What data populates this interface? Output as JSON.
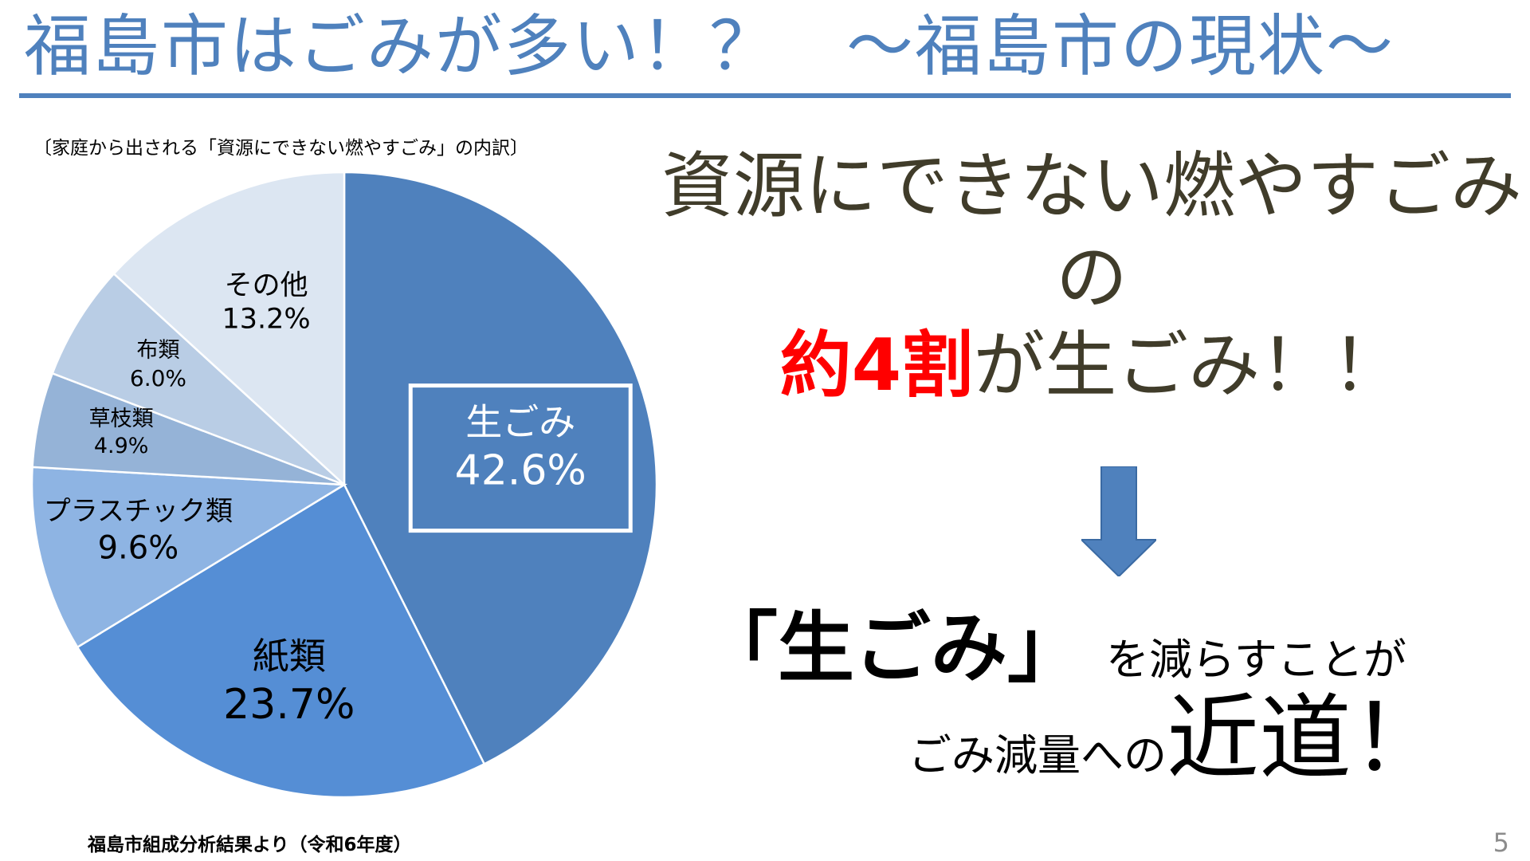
{
  "slide": {
    "title": "福島市はごみが多い！？　～福島市の現状～",
    "chart_caption": "〔家庭から出される「資源にできない燃やすごみ」の内訳〕",
    "source_note": "福島市組成分析結果より（令和6年度）",
    "page_number": "5"
  },
  "message": {
    "line1": "資源にできない燃やすごみ",
    "line2": "の",
    "line3_emphasis": "約4割",
    "line3_rest": "が生ごみ！！",
    "conclusion_emphasis": "「生ごみ」",
    "conclusion_rest": "を減らすことが",
    "conclusion2_prefix": "ごみ減量への",
    "conclusion2_big": "近道！"
  },
  "colors": {
    "title": "#4F81BD",
    "emphasis": "#ff0000",
    "arrow": "#4F81BD"
  },
  "chart_data": {
    "type": "pie",
    "title": "",
    "slices": [
      {
        "label": "生ごみ",
        "value": 42.6,
        "value_label": "42.6%",
        "color": "#4F81BD"
      },
      {
        "label": "紙類",
        "value": 23.7,
        "value_label": "23.7%",
        "color": "#558ED5"
      },
      {
        "label": "プラスチック類",
        "value": 9.6,
        "value_label": "9.6%",
        "color": "#8EB4E3"
      },
      {
        "label": "草枝類",
        "value": 4.9,
        "value_label": "4.9%",
        "color": "#95B3D7"
      },
      {
        "label": "布類",
        "value": 6.0,
        "value_label": "6.0%",
        "color": "#B9CDE5"
      },
      {
        "label": "その他",
        "value": 13.2,
        "value_label": "13.2%",
        "color": "#DCE6F2"
      }
    ]
  }
}
